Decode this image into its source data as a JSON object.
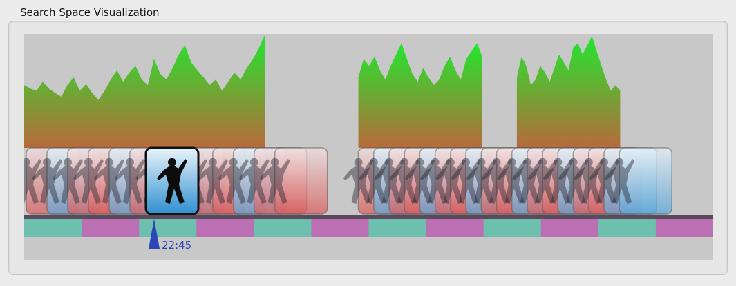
{
  "panel": {
    "title": "Search Space Visualization"
  },
  "playhead": {
    "time_label": "22:45",
    "color": "#2a47b8"
  },
  "colors": {
    "background": "#ececec",
    "plot_area": "#c8c8c8",
    "bar_top": "#22e62e",
    "bar_bottom": "#b86a3a",
    "segment_teal": "#6dbfae",
    "segment_magenta": "#bd6fb4",
    "timeline_rail": "#5a4a5e",
    "selected_frame_border": "#111111"
  },
  "timeline": {
    "segment_count": 12,
    "segment_pattern": [
      "teal",
      "magenta"
    ]
  },
  "activity_histogram": {
    "clusters": [
      {
        "start": 0.0,
        "end": 0.35,
        "levels": [
          0.55,
          0.52,
          0.5,
          0.58,
          0.52,
          0.48,
          0.45,
          0.55,
          0.62,
          0.5,
          0.56,
          0.48,
          0.42,
          0.5,
          0.6,
          0.68,
          0.58,
          0.66,
          0.72,
          0.6,
          0.55,
          0.78,
          0.65,
          0.6,
          0.7,
          0.82,
          0.9,
          0.75,
          0.68,
          0.62,
          0.55,
          0.6,
          0.5,
          0.58,
          0.66,
          0.6,
          0.7,
          0.78,
          0.88,
          1.0
        ]
      },
      {
        "start": 0.485,
        "end": 0.665,
        "levels": [
          0.62,
          0.78,
          0.72,
          0.8,
          0.68,
          0.6,
          0.72,
          0.82,
          0.92,
          0.78,
          0.65,
          0.58,
          0.7,
          0.62,
          0.55,
          0.6,
          0.72,
          0.8,
          0.68,
          0.6,
          0.78,
          0.85,
          0.92,
          0.8
        ]
      },
      {
        "start": 0.715,
        "end": 0.865,
        "levels": [
          0.62,
          0.8,
          0.72,
          0.55,
          0.6,
          0.72,
          0.66,
          0.58,
          0.7,
          0.82,
          0.75,
          0.68,
          0.88,
          0.92,
          0.82,
          0.9,
          0.98,
          0.85,
          0.72,
          0.6,
          0.5,
          0.55,
          0.5
        ]
      }
    ]
  },
  "thumbnails": {
    "selected_index": 0,
    "left_group": {
      "count": 13,
      "start": 0.003,
      "end": 0.44
    },
    "right_group": {
      "count": 18,
      "start": 0.485,
      "end": 0.94
    }
  }
}
